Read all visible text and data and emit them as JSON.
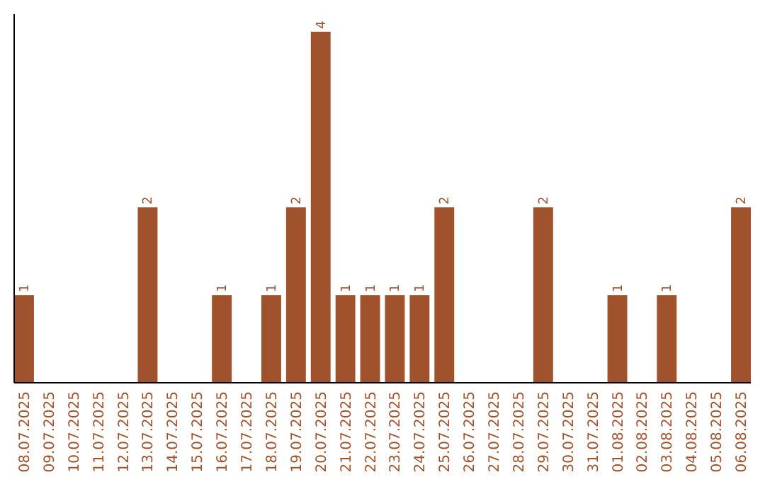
{
  "chart_data": {
    "type": "bar",
    "categories": [
      "08.07.2025",
      "09.07.2025",
      "10.07.2025",
      "11.07.2025",
      "12.07.2025",
      "13.07.2025",
      "14.07.2025",
      "15.07.2025",
      "16.07.2025",
      "17.07.2025",
      "18.07.2025",
      "19.07.2025",
      "20.07.2025",
      "21.07.2025",
      "22.07.2025",
      "23.07.2025",
      "24.07.2025",
      "25.07.2025",
      "26.07.2025",
      "27.07.2025",
      "28.07.2025",
      "29.07.2025",
      "30.07.2025",
      "31.07.2025",
      "01.08.2025",
      "02.08.2025",
      "03.08.2025",
      "04.08.2025",
      "05.08.2025",
      "06.08.2025"
    ],
    "values": [
      1,
      0,
      0,
      0,
      0,
      2,
      0,
      0,
      1,
      0,
      1,
      2,
      4,
      1,
      1,
      1,
      1,
      2,
      0,
      0,
      0,
      2,
      0,
      0,
      1,
      0,
      1,
      0,
      0,
      2
    ],
    "value_labels": [
      "1",
      null,
      null,
      null,
      null,
      "2",
      null,
      null,
      "1",
      null,
      "1",
      "2",
      "4",
      "1",
      "1",
      "1",
      "1",
      "2",
      null,
      null,
      null,
      "2",
      null,
      null,
      "1",
      null,
      "1",
      null,
      null,
      "2"
    ],
    "color": "#a0522d",
    "ylim": [
      0,
      4.2
    ],
    "tick_labels": "x",
    "grid": false
  }
}
